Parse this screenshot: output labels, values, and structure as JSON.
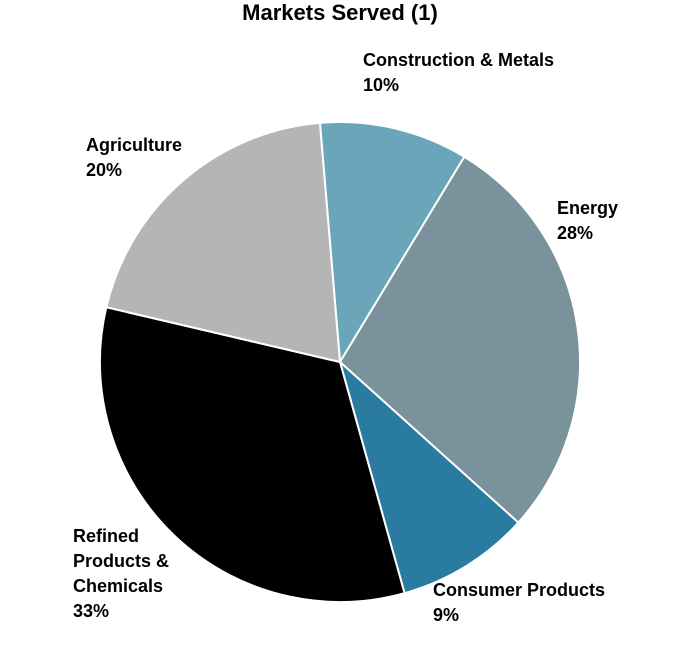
{
  "chart_data": {
    "type": "pie",
    "title": "Markets Served (1)",
    "categories": [
      "Construction & Metals",
      "Energy",
      "Consumer Products",
      "Refined Products & Chemicals",
      "Agriculture"
    ],
    "values": [
      10,
      28,
      9,
      33,
      20
    ],
    "value_labels": [
      "10%",
      "28%",
      "9%",
      "33%",
      "20%"
    ],
    "colors": [
      "#6aa5b9",
      "#7a929b",
      "#2a7ba0",
      "#000000",
      "#b5b5b5"
    ]
  }
}
